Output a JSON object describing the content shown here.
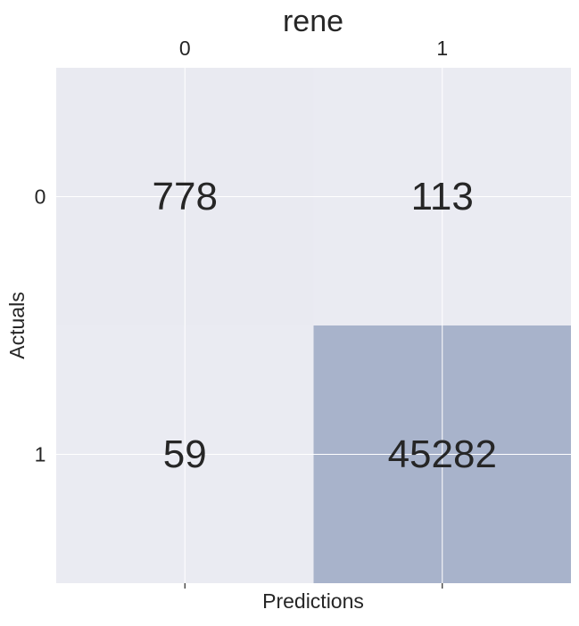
{
  "chart_data": {
    "type": "heatmap",
    "title": "rene",
    "xlabel": "Predictions",
    "ylabel": "Actuals",
    "x_tick_labels": [
      "0",
      "1"
    ],
    "y_tick_labels": [
      "0",
      "1"
    ],
    "x_tick_position": "top",
    "matrix": [
      [
        778,
        113
      ],
      [
        59,
        45282
      ]
    ],
    "cell_labels": [
      [
        "778",
        "113"
      ],
      [
        "59",
        "45282"
      ]
    ],
    "colors": {
      "low": "#eaebf2",
      "high": "#a8b3cb",
      "background": "#eaeaf2",
      "grid": "#ffffff",
      "text": "#262626"
    },
    "grid": true
  }
}
